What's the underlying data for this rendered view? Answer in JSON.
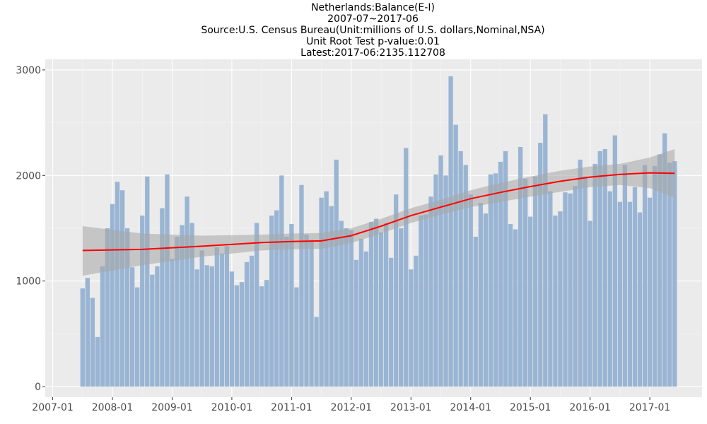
{
  "chart_data": {
    "type": "bar",
    "title_lines": [
      "Netherlands:Balance(E-I)",
      "2007-07~2017-06",
      "Source:U.S. Census Bureau(Unit:millions of U.S. dollars,Nominal,NSA)",
      "Unit Root Test p-value:0.01",
      "Latest:2017-06:2135.112708"
    ],
    "xlabel": "",
    "ylabel": "",
    "x_start": "2007-07",
    "x_end": "2017-06",
    "ylim": [
      -100,
      3100
    ],
    "y_ticks": [
      0,
      1000,
      2000,
      3000
    ],
    "y_tick_labels": [
      "0",
      "1000",
      "2000",
      "3000"
    ],
    "x_tick_labels": [
      "2007-01",
      "2008-01",
      "2009-01",
      "2010-01",
      "2011-01",
      "2012-01",
      "2013-01",
      "2014-01",
      "2015-01",
      "2016-01",
      "2017-01"
    ],
    "grid": true,
    "bar_color": "#9ab5d3",
    "trend_color": "#ff0000",
    "band_color": "#a6a6a6",
    "panel_background": "#ebebeb",
    "values": [
      930,
      1030,
      840,
      470,
      1140,
      1500,
      1730,
      1940,
      1860,
      1500,
      1130,
      940,
      1620,
      1990,
      1060,
      1140,
      1690,
      2010,
      1210,
      1420,
      1530,
      1800,
      1550,
      1110,
      1290,
      1150,
      1140,
      1320,
      1260,
      1330,
      1090,
      960,
      990,
      1180,
      1240,
      1550,
      950,
      1010,
      1620,
      1670,
      2000,
      1420,
      1540,
      940,
      1910,
      1440,
      1390,
      660,
      1790,
      1850,
      1710,
      2150,
      1570,
      1500,
      1480,
      1200,
      1400,
      1280,
      1560,
      1590,
      1460,
      1550,
      1220,
      1820,
      1500,
      2260,
      1110,
      1240,
      1620,
      1630,
      1800,
      2010,
      2190,
      2000,
      2940,
      2480,
      2230,
      2100,
      1820,
      1420,
      1740,
      1640,
      2010,
      2020,
      2130,
      2230,
      1540,
      1490,
      2270,
      1970,
      1610,
      1990,
      2310,
      2580,
      1850,
      1620,
      1660,
      1840,
      1830,
      1900,
      2150,
      1990,
      1570,
      2110,
      2230,
      2250,
      1850,
      2380,
      1750,
      2100,
      1750,
      1890,
      1650,
      2100,
      1790,
      2090,
      2200,
      2400,
      2120,
      2135
    ],
    "trend": {
      "months_from_start": [
        0,
        12,
        24,
        36,
        42,
        48,
        54,
        60,
        66,
        72,
        78,
        84,
        90,
        96,
        102,
        108,
        114,
        119
      ],
      "values": [
        1290,
        1300,
        1330,
        1365,
        1375,
        1380,
        1430,
        1520,
        1620,
        1700,
        1780,
        1840,
        1895,
        1945,
        1985,
        2010,
        2025,
        2020
      ],
      "lower": [
        1050,
        1150,
        1230,
        1290,
        1300,
        1305,
        1360,
        1450,
        1550,
        1630,
        1700,
        1750,
        1800,
        1845,
        1890,
        1910,
        1880,
        1790
      ],
      "upper": [
        1520,
        1450,
        1430,
        1440,
        1450,
        1455,
        1500,
        1590,
        1690,
        1770,
        1860,
        1930,
        1990,
        2045,
        2085,
        2110,
        2170,
        2250
      ]
    }
  }
}
